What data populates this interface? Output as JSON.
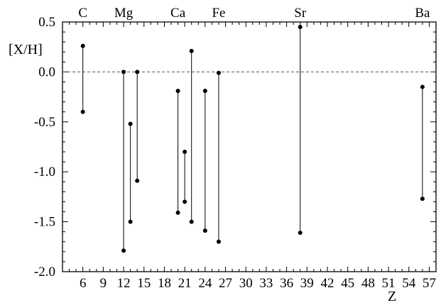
{
  "chart_data": {
    "type": "scatter",
    "title": "",
    "xlabel": "Z",
    "ylabel": "[X/H]",
    "xlim": [
      3,
      58
    ],
    "ylim": [
      -2.0,
      0.5
    ],
    "xticks": [
      6,
      9,
      12,
      15,
      18,
      21,
      24,
      27,
      30,
      33,
      36,
      39,
      42,
      45,
      48,
      51,
      54,
      57
    ],
    "yticks": [
      0.5,
      0.0,
      -0.5,
      -1.0,
      -1.5,
      -2.0
    ],
    "ytick_labels": [
      "0.5",
      "0.0",
      "-0.5",
      "-1.0",
      "-1.5",
      "-2.0"
    ],
    "reference_line": {
      "y": 0.0,
      "style": "dashed"
    },
    "element_labels": [
      {
        "text": "C",
        "z": 6
      },
      {
        "text": "Mg",
        "z": 12
      },
      {
        "text": "Ca",
        "z": 20
      },
      {
        "text": "Fe",
        "z": 26
      },
      {
        "text": "Sr",
        "z": 38
      },
      {
        "text": "Ba",
        "z": 56
      }
    ],
    "ranges": [
      {
        "z": 6,
        "min": -0.4,
        "max": 0.26
      },
      {
        "z": 12,
        "min": -1.79,
        "max": 0.0
      },
      {
        "z": 13,
        "min": -1.5,
        "max": -0.52
      },
      {
        "z": 14,
        "min": -1.09,
        "max": 0.0
      },
      {
        "z": 20,
        "min": -1.41,
        "max": -0.19
      },
      {
        "z": 21,
        "min": -1.3,
        "max": -0.8
      },
      {
        "z": 22,
        "min": -1.5,
        "max": 0.21
      },
      {
        "z": 24,
        "min": -1.59,
        "max": -0.19
      },
      {
        "z": 26,
        "min": -1.7,
        "max": -0.01
      },
      {
        "z": 38,
        "min": -1.61,
        "max": 0.45
      },
      {
        "z": 56,
        "min": -1.27,
        "max": -0.15
      }
    ],
    "grid": false,
    "colors": {
      "line": "#000000",
      "marker": "#000000",
      "reference": "#555555"
    }
  }
}
